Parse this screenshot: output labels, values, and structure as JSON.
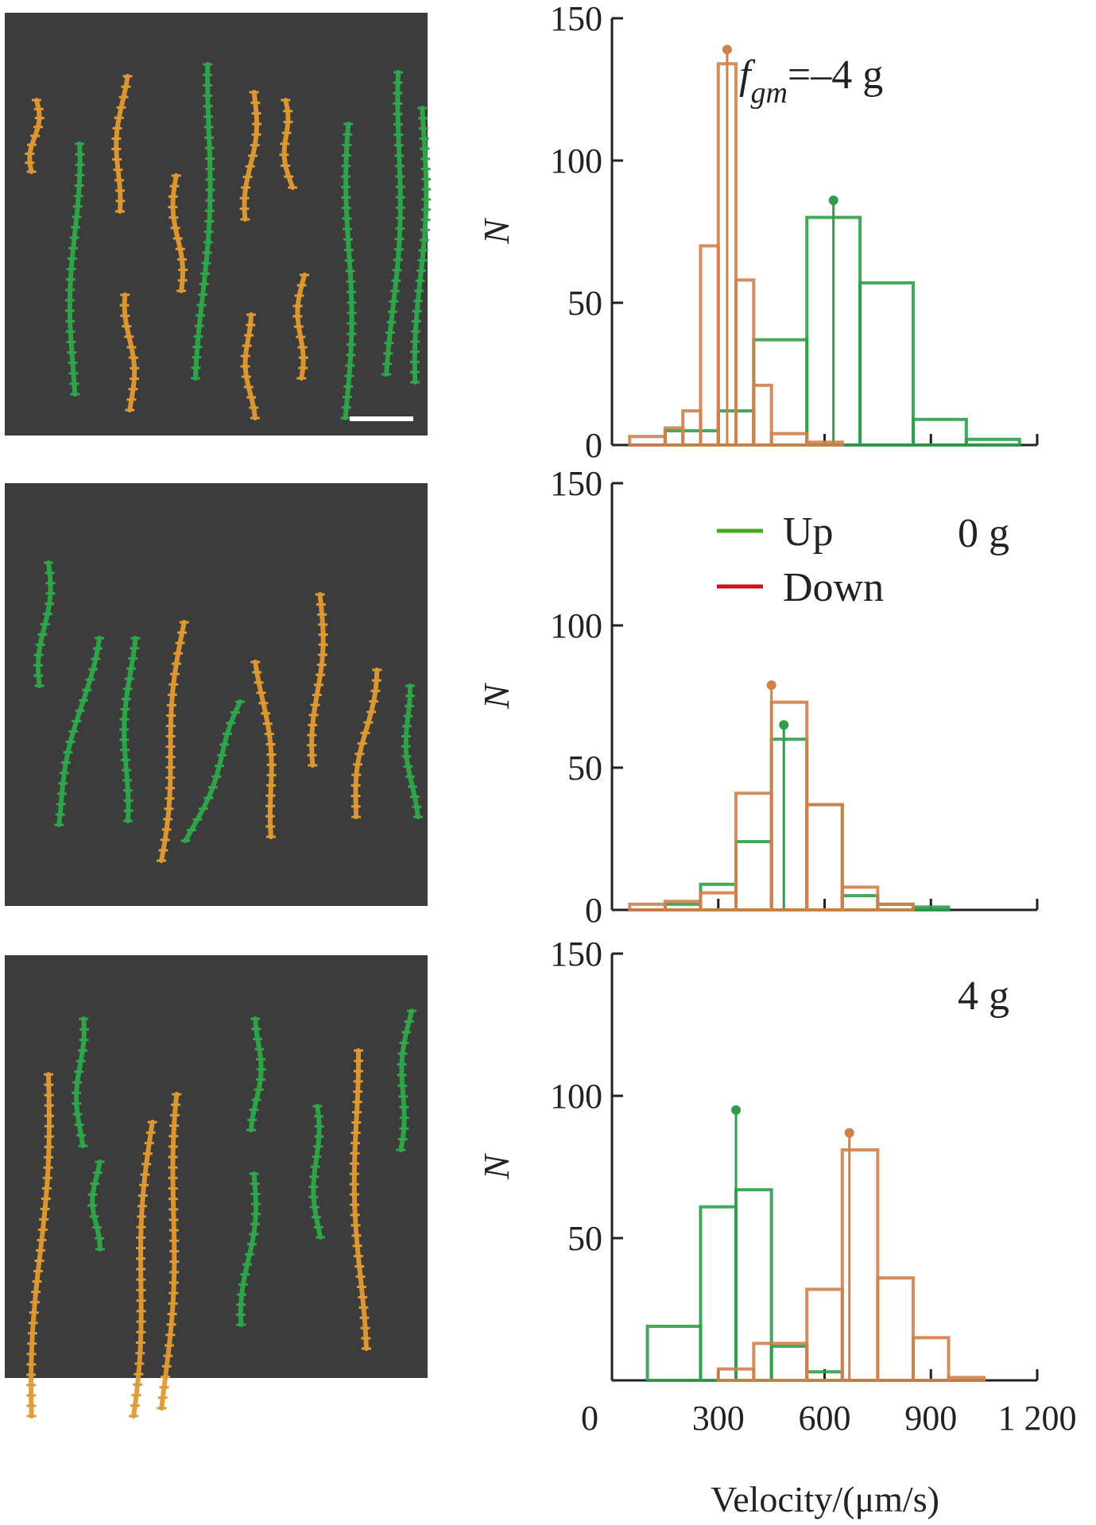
{
  "colors": {
    "up": "#2e9e4a",
    "down": "#d2804a",
    "legend_up": "#44aa22",
    "legend_down": "#cc1111",
    "axis": "#222222",
    "image_bg": "#3c3c3c",
    "track_up": "#2ea84a",
    "track_down": "#e09a32"
  },
  "chart_data": [
    {
      "type": "bar",
      "panel": "top",
      "annotation_main": "f",
      "annotation_sub": "gm",
      "annotation_rest": "=–4 g",
      "ylabel": "N",
      "ylim": [
        0,
        150
      ],
      "yticks": [
        0,
        50,
        100,
        150
      ],
      "xlim": [
        0,
        1200
      ],
      "series": [
        {
          "name": "Up",
          "bins": [
            [
              150,
              300,
              5
            ],
            [
              300,
              400,
              12
            ],
            [
              400,
              550,
              37
            ],
            [
              550,
              700,
              80
            ],
            [
              700,
              850,
              57
            ],
            [
              850,
              1000,
              9
            ],
            [
              1000,
              1150,
              2
            ]
          ],
          "mean": 625,
          "mean_marker": 86
        },
        {
          "name": "Down",
          "bins": [
            [
              50,
              150,
              3
            ],
            [
              150,
              200,
              6
            ],
            [
              200,
              250,
              12
            ],
            [
              250,
              300,
              70
            ],
            [
              300,
              350,
              134
            ],
            [
              350,
              400,
              58
            ],
            [
              400,
              450,
              21
            ],
            [
              450,
              550,
              4
            ],
            [
              550,
              650,
              1
            ]
          ],
          "mean": 325,
          "mean_marker": 139
        }
      ]
    },
    {
      "type": "bar",
      "panel": "middle",
      "annotation": "0 g",
      "legend": [
        {
          "name": "Up"
        },
        {
          "name": "Down"
        }
      ],
      "ylabel": "N",
      "ylim": [
        0,
        150
      ],
      "yticks": [
        0,
        50,
        100,
        150
      ],
      "xlim": [
        0,
        1200
      ],
      "series": [
        {
          "name": "Up",
          "bins": [
            [
              150,
              250,
              2
            ],
            [
              250,
              350,
              9
            ],
            [
              350,
              450,
              24
            ],
            [
              450,
              550,
              60
            ],
            [
              550,
              650,
              37
            ],
            [
              650,
              750,
              5
            ],
            [
              750,
              850,
              2
            ],
            [
              850,
              950,
              1
            ]
          ],
          "mean": 485,
          "mean_marker": 65
        },
        {
          "name": "Down",
          "bins": [
            [
              50,
              150,
              2
            ],
            [
              150,
              250,
              3
            ],
            [
              250,
              350,
              6
            ],
            [
              350,
              450,
              41
            ],
            [
              450,
              550,
              73
            ],
            [
              550,
              650,
              37
            ],
            [
              650,
              750,
              8
            ],
            [
              750,
              850,
              2
            ]
          ],
          "mean": 450,
          "mean_marker": 79
        }
      ]
    },
    {
      "type": "bar",
      "panel": "bottom",
      "annotation": "4 g",
      "ylabel": "N",
      "xlabel": "Velocity/(μm/s)",
      "ylim": [
        0,
        150
      ],
      "yticks": [
        50,
        100,
        150
      ],
      "xticklabels": [
        "0",
        "300",
        "600",
        "900",
        "1 200"
      ],
      "xticks": [
        0,
        300,
        600,
        900,
        1200
      ],
      "xlim": [
        0,
        1200
      ],
      "series": [
        {
          "name": "Up",
          "bins": [
            [
              100,
              250,
              19
            ],
            [
              250,
              350,
              61
            ],
            [
              350,
              450,
              67
            ],
            [
              450,
              550,
              12
            ],
            [
              550,
              650,
              3
            ]
          ],
          "mean": 350,
          "mean_marker": 95
        },
        {
          "name": "Down",
          "bins": [
            [
              300,
              400,
              4
            ],
            [
              400,
              550,
              13
            ],
            [
              550,
              650,
              32
            ],
            [
              650,
              750,
              81
            ],
            [
              750,
              850,
              36
            ],
            [
              850,
              950,
              15
            ],
            [
              950,
              1050,
              1
            ]
          ],
          "mean": 670,
          "mean_marker": 87
        }
      ]
    }
  ]
}
